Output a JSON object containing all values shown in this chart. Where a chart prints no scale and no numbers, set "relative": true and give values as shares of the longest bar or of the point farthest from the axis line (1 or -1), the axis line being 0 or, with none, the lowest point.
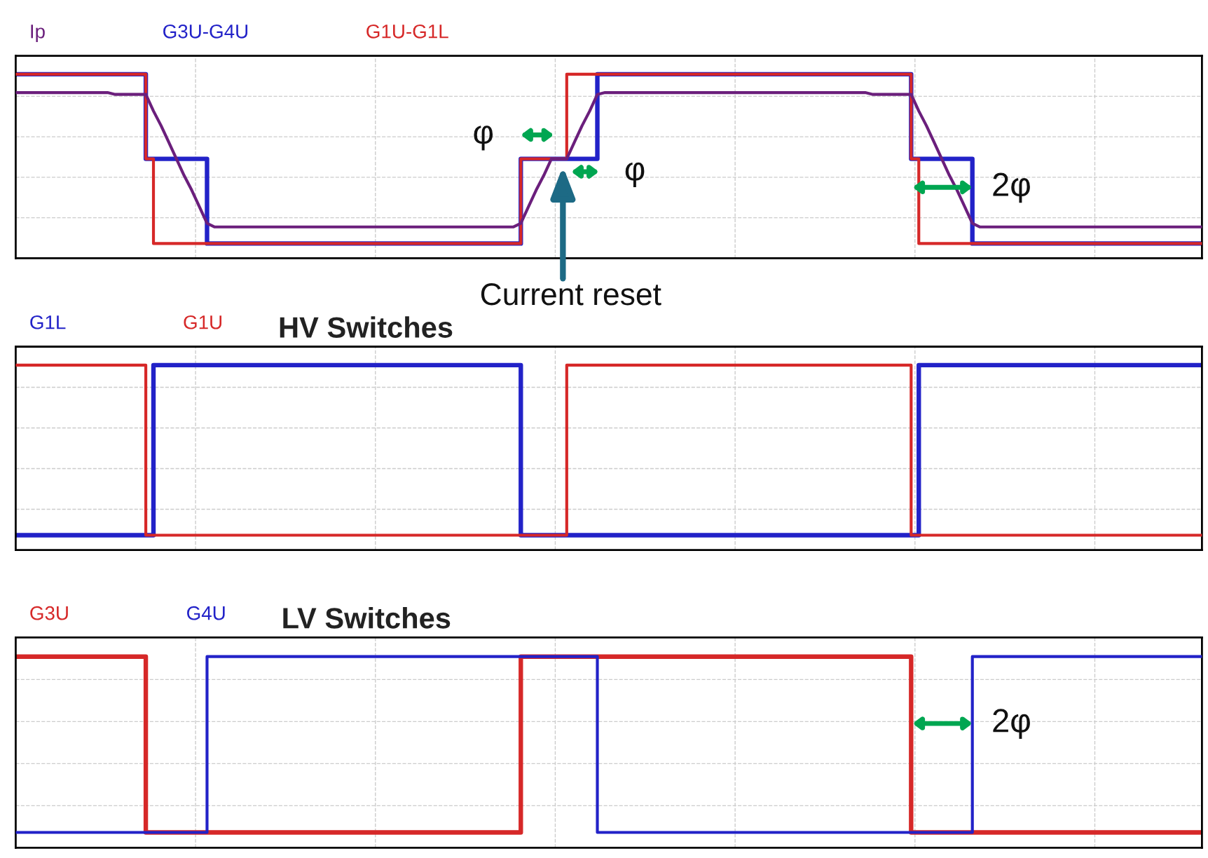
{
  "chart_data": [
    {
      "type": "step",
      "relative": true,
      "grid": true,
      "legend": "top left",
      "tick_labels": false,
      "categories": [
        null,
        null,
        null,
        null,
        null,
        null,
        null,
        null,
        null,
        null,
        null,
        null,
        null,
        null,
        null,
        null,
        null,
        null,
        null,
        null,
        null,
        null,
        null,
        null,
        null,
        null,
        null,
        null,
        null,
        null,
        null,
        null,
        null,
        null,
        null,
        null,
        null,
        null,
        null,
        null,
        null,
        null,
        null,
        null,
        null,
        null,
        null,
        null,
        null,
        null,
        null,
        null,
        null,
        null,
        null,
        null,
        null,
        null,
        null,
        null,
        null,
        null,
        null,
        null,
        null,
        null,
        null,
        null,
        null,
        null,
        null,
        null,
        null,
        null,
        null,
        null,
        null,
        null,
        null,
        null,
        null,
        null,
        null,
        null,
        null,
        null,
        null,
        null,
        null,
        null,
        null,
        null,
        null,
        null,
        null,
        null,
        null,
        null,
        null,
        null,
        null,
        null,
        null,
        null,
        null,
        null,
        null,
        null,
        null,
        null,
        null,
        null,
        null,
        null,
        null,
        null,
        null,
        null,
        null,
        null,
        null,
        null,
        null,
        null,
        null,
        null,
        null,
        null,
        null,
        null,
        null,
        null,
        null,
        null,
        null,
        null,
        null,
        null,
        null,
        null,
        null,
        null,
        null,
        null,
        null,
        null,
        null,
        null,
        null,
        null,
        null,
        null,
        null,
        null,
        null,
        null
      ],
      "series": [
        {
          "name": "Ip",
          "type": "line",
          "color": "#6b1f7c",
          "values": [
            0.9,
            0.9,
            0.9,
            0.9,
            0.9,
            0.9,
            0.9,
            0.9,
            0.9,
            0.9,
            0.9,
            0.9,
            0.9,
            0.89,
            0.89,
            0.89,
            0.89,
            0.89,
            0.8,
            0.72,
            0.63,
            0.54,
            0.45,
            0.37,
            0.28,
            0.19,
            0.17,
            0.17,
            0.17,
            0.17,
            0.17,
            0.17,
            0.17,
            0.17,
            0.17,
            0.17,
            0.17,
            0.17,
            0.17,
            0.17,
            0.17,
            0.17,
            0.17,
            0.17,
            0.17,
            0.17,
            0.17,
            0.17,
            0.17,
            0.17,
            0.17,
            0.17,
            0.17,
            0.17,
            0.17,
            0.17,
            0.17,
            0.17,
            0.17,
            0.17,
            0.17,
            0.17,
            0.17,
            0.17,
            0.17,
            0.17,
            0.19,
            0.28,
            0.37,
            0.45,
            0.54,
            0.54,
            0.54,
            0.63,
            0.72,
            0.8,
            0.89,
            0.9,
            0.9,
            0.9,
            0.9,
            0.9,
            0.9,
            0.9,
            0.9,
            0.9,
            0.9,
            0.9,
            0.9,
            0.9,
            0.9,
            0.9,
            0.9,
            0.9,
            0.9,
            0.9,
            0.9,
            0.9,
            0.9,
            0.9,
            0.9,
            0.9,
            0.9,
            0.9,
            0.9,
            0.9,
            0.9,
            0.9,
            0.9,
            0.9,
            0.9,
            0.9,
            0.89,
            0.89,
            0.89,
            0.89,
            0.89,
            0.89,
            0.8,
            0.72,
            0.63,
            0.54,
            0.45,
            0.37,
            0.28,
            0.19,
            0.17,
            0.17,
            0.17,
            0.17,
            0.17,
            0.17,
            0.17,
            0.17,
            0.17,
            0.17,
            0.17,
            0.17,
            0.17,
            0.17,
            0.17,
            0.17,
            0.17,
            0.17,
            0.17,
            0.17,
            0.17,
            0.17,
            0.17,
            0.17,
            0.17,
            0.17,
            0.17,
            0.17,
            0.17,
            0.17
          ]
        },
        {
          "name": "G3U-G4U",
          "color": "#2222c8",
          "values": [
            1,
            1,
            1,
            1,
            1,
            1,
            1,
            1,
            1,
            1,
            1,
            1,
            1,
            1,
            1,
            1,
            1,
            0.54,
            0.54,
            0.54,
            0.54,
            0.54,
            0.54,
            0.54,
            0.54,
            0.08,
            0.08,
            0.08,
            0.08,
            0.08,
            0.08,
            0.08,
            0.08,
            0.08,
            0.08,
            0.08,
            0.08,
            0.08,
            0.08,
            0.08,
            0.08,
            0.08,
            0.08,
            0.08,
            0.08,
            0.08,
            0.08,
            0.08,
            0.08,
            0.08,
            0.08,
            0.08,
            0.08,
            0.08,
            0.08,
            0.08,
            0.08,
            0.08,
            0.08,
            0.08,
            0.08,
            0.08,
            0.08,
            0.08,
            0.08,
            0.08,
            0.54,
            0.54,
            0.54,
            0.54,
            0.54,
            0.54,
            0.54,
            0.54,
            0.54,
            0.54,
            1,
            1,
            1,
            1,
            1,
            1,
            1,
            1,
            1,
            1,
            1,
            1,
            1,
            1,
            1,
            1,
            1,
            1,
            1,
            1,
            1,
            1,
            1,
            1,
            1,
            1,
            1,
            1,
            1,
            1,
            1,
            1,
            1,
            1,
            1,
            1,
            1,
            1,
            1,
            1,
            1,
            0.54,
            0.54,
            0.54,
            0.54,
            0.54,
            0.54,
            0.54,
            0.54,
            0.08,
            0.08,
            0.08,
            0.08,
            0.08,
            0.08,
            0.08,
            0.08,
            0.08,
            0.08,
            0.08,
            0.08,
            0.08,
            0.08,
            0.08,
            0.08,
            0.08,
            0.08,
            0.08,
            0.08,
            0.08,
            0.08,
            0.08,
            0.08,
            0.08,
            0.08,
            0.08,
            0.08,
            0.08,
            0.08,
            0.08
          ]
        },
        {
          "name": "G1U-G1L",
          "color": "#d62828",
          "values": [
            1,
            1,
            1,
            1,
            1,
            1,
            1,
            1,
            1,
            1,
            1,
            1,
            1,
            1,
            1,
            1,
            1,
            0.54,
            0.08,
            0.08,
            0.08,
            0.08,
            0.08,
            0.08,
            0.08,
            0.08,
            0.08,
            0.08,
            0.08,
            0.08,
            0.08,
            0.08,
            0.08,
            0.08,
            0.08,
            0.08,
            0.08,
            0.08,
            0.08,
            0.08,
            0.08,
            0.08,
            0.08,
            0.08,
            0.08,
            0.08,
            0.08,
            0.08,
            0.08,
            0.08,
            0.08,
            0.08,
            0.08,
            0.08,
            0.08,
            0.08,
            0.08,
            0.08,
            0.08,
            0.08,
            0.08,
            0.08,
            0.08,
            0.08,
            0.08,
            0.08,
            0.54,
            0.54,
            0.54,
            0.54,
            0.54,
            0.54,
            1,
            1,
            1,
            1,
            1,
            1,
            1,
            1,
            1,
            1,
            1,
            1,
            1,
            1,
            1,
            1,
            1,
            1,
            1,
            1,
            1,
            1,
            1,
            1,
            1,
            1,
            1,
            1,
            1,
            1,
            1,
            1,
            1,
            1,
            1,
            1,
            1,
            1,
            1,
            1,
            1,
            1,
            1,
            1,
            1,
            0.54,
            0.08,
            0.08,
            0.08,
            0.08,
            0.08,
            0.08,
            0.08,
            0.08,
            0.08,
            0.08,
            0.08,
            0.08,
            0.08,
            0.08,
            0.08,
            0.08,
            0.08,
            0.08,
            0.08,
            0.08,
            0.08,
            0.08,
            0.08,
            0.08,
            0.08,
            0.08,
            0.08,
            0.08,
            0.08,
            0.08,
            0.08,
            0.08,
            0.08,
            0.08,
            0.08,
            0.08,
            0.08,
            0.08
          ]
        }
      ],
      "annotations": [
        "φ",
        "φ",
        "2φ",
        "Current reset"
      ]
    },
    {
      "type": "step",
      "relative": true,
      "grid": true,
      "legend": "top left",
      "tick_labels": false,
      "title": "HV Switches",
      "categories": [
        null,
        null,
        null,
        null,
        null,
        null,
        null,
        null,
        null,
        null,
        null,
        null,
        null,
        null,
        null,
        null,
        null,
        null,
        null,
        null,
        null,
        null,
        null,
        null,
        null,
        null,
        null,
        null,
        null,
        null,
        null,
        null,
        null,
        null,
        null,
        null,
        null,
        null,
        null,
        null,
        null,
        null,
        null,
        null,
        null,
        null,
        null,
        null,
        null,
        null,
        null,
        null,
        null,
        null,
        null,
        null,
        null,
        null,
        null,
        null,
        null,
        null,
        null,
        null,
        null,
        null,
        null,
        null,
        null,
        null,
        null,
        null,
        null,
        null,
        null,
        null,
        null,
        null,
        null,
        null,
        null,
        null,
        null,
        null,
        null,
        null,
        null,
        null,
        null,
        null,
        null,
        null,
        null,
        null,
        null,
        null,
        null,
        null,
        null,
        null,
        null,
        null,
        null,
        null,
        null,
        null,
        null,
        null,
        null,
        null,
        null,
        null,
        null,
        null,
        null,
        null,
        null,
        null,
        null,
        null,
        null,
        null,
        null,
        null,
        null,
        null,
        null,
        null,
        null,
        null,
        null,
        null,
        null,
        null,
        null,
        null,
        null,
        null,
        null,
        null,
        null,
        null,
        null,
        null,
        null,
        null,
        null,
        null,
        null,
        null,
        null,
        null,
        null,
        null,
        null,
        null
      ],
      "series": [
        {
          "name": "G1L",
          "color": "#2222c8",
          "values": [
            0.08,
            0.08,
            0.08,
            0.08,
            0.08,
            0.08,
            0.08,
            0.08,
            0.08,
            0.08,
            0.08,
            0.08,
            0.08,
            0.08,
            0.08,
            0.08,
            0.08,
            0.08,
            1,
            1,
            1,
            1,
            1,
            1,
            1,
            1,
            1,
            1,
            1,
            1,
            1,
            1,
            1,
            1,
            1,
            1,
            1,
            1,
            1,
            1,
            1,
            1,
            1,
            1,
            1,
            1,
            1,
            1,
            1,
            1,
            1,
            1,
            1,
            1,
            1,
            1,
            1,
            1,
            1,
            1,
            1,
            1,
            1,
            1,
            1,
            1,
            0.08,
            0.08,
            0.08,
            0.08,
            0.08,
            0.08,
            0.08,
            0.08,
            0.08,
            0.08,
            0.08,
            0.08,
            0.08,
            0.08,
            0.08,
            0.08,
            0.08,
            0.08,
            0.08,
            0.08,
            0.08,
            0.08,
            0.08,
            0.08,
            0.08,
            0.08,
            0.08,
            0.08,
            0.08,
            0.08,
            0.08,
            0.08,
            0.08,
            0.08,
            0.08,
            0.08,
            0.08,
            0.08,
            0.08,
            0.08,
            0.08,
            0.08,
            0.08,
            0.08,
            0.08,
            0.08,
            0.08,
            0.08,
            0.08,
            0.08,
            0.08,
            0.08,
            1,
            1,
            1,
            1,
            1,
            1,
            1,
            1,
            1,
            1,
            1,
            1,
            1,
            1,
            1,
            1,
            1,
            1,
            1,
            1,
            1,
            1,
            1,
            1,
            1,
            1,
            1,
            1,
            1,
            1,
            1,
            1,
            1,
            1,
            1,
            1,
            1,
            1
          ]
        },
        {
          "name": "G1U",
          "color": "#d62828",
          "values": [
            1,
            1,
            1,
            1,
            1,
            1,
            1,
            1,
            1,
            1,
            1,
            1,
            1,
            1,
            1,
            1,
            1,
            0.08,
            0.08,
            0.08,
            0.08,
            0.08,
            0.08,
            0.08,
            0.08,
            0.08,
            0.08,
            0.08,
            0.08,
            0.08,
            0.08,
            0.08,
            0.08,
            0.08,
            0.08,
            0.08,
            0.08,
            0.08,
            0.08,
            0.08,
            0.08,
            0.08,
            0.08,
            0.08,
            0.08,
            0.08,
            0.08,
            0.08,
            0.08,
            0.08,
            0.08,
            0.08,
            0.08,
            0.08,
            0.08,
            0.08,
            0.08,
            0.08,
            0.08,
            0.08,
            0.08,
            0.08,
            0.08,
            0.08,
            0.08,
            0.08,
            0.08,
            0.08,
            0.08,
            0.08,
            0.08,
            0.08,
            1,
            1,
            1,
            1,
            1,
            1,
            1,
            1,
            1,
            1,
            1,
            1,
            1,
            1,
            1,
            1,
            1,
            1,
            1,
            1,
            1,
            1,
            1,
            1,
            1,
            1,
            1,
            1,
            1,
            1,
            1,
            1,
            1,
            1,
            1,
            1,
            1,
            1,
            1,
            1,
            1,
            1,
            1,
            1,
            1,
            0.08,
            0.08,
            0.08,
            0.08,
            0.08,
            0.08,
            0.08,
            0.08,
            0.08,
            0.08,
            0.08,
            0.08,
            0.08,
            0.08,
            0.08,
            0.08,
            0.08,
            0.08,
            0.08,
            0.08,
            0.08,
            0.08,
            0.08,
            0.08,
            0.08,
            0.08,
            0.08,
            0.08,
            0.08,
            0.08,
            0.08,
            0.08,
            0.08,
            0.08,
            0.08,
            0.08,
            0.08,
            0.08,
            0.08
          ]
        }
      ]
    },
    {
      "type": "step",
      "relative": true,
      "grid": true,
      "legend": "top left",
      "tick_labels": false,
      "title": "LV Switches",
      "categories": [
        null,
        null,
        null,
        null,
        null,
        null,
        null,
        null,
        null,
        null,
        null,
        null,
        null,
        null,
        null,
        null,
        null,
        null,
        null,
        null,
        null,
        null,
        null,
        null,
        null,
        null,
        null,
        null,
        null,
        null,
        null,
        null,
        null,
        null,
        null,
        null,
        null,
        null,
        null,
        null,
        null,
        null,
        null,
        null,
        null,
        null,
        null,
        null,
        null,
        null,
        null,
        null,
        null,
        null,
        null,
        null,
        null,
        null,
        null,
        null,
        null,
        null,
        null,
        null,
        null,
        null,
        null,
        null,
        null,
        null,
        null,
        null,
        null,
        null,
        null,
        null,
        null,
        null,
        null,
        null,
        null,
        null,
        null,
        null,
        null,
        null,
        null,
        null,
        null,
        null,
        null,
        null,
        null,
        null,
        null,
        null,
        null,
        null,
        null,
        null,
        null,
        null,
        null,
        null,
        null,
        null,
        null,
        null,
        null,
        null,
        null,
        null,
        null,
        null,
        null,
        null,
        null,
        null,
        null,
        null,
        null,
        null,
        null,
        null,
        null,
        null,
        null,
        null,
        null,
        null,
        null,
        null,
        null,
        null,
        null,
        null,
        null,
        null,
        null,
        null,
        null,
        null,
        null,
        null,
        null,
        null,
        null,
        null,
        null,
        null,
        null,
        null,
        null,
        null,
        null,
        null
      ],
      "series": [
        {
          "name": "G3U",
          "color": "#d62828",
          "values": [
            1,
            1,
            1,
            1,
            1,
            1,
            1,
            1,
            1,
            1,
            1,
            1,
            1,
            1,
            1,
            1,
            1,
            0.08,
            0.08,
            0.08,
            0.08,
            0.08,
            0.08,
            0.08,
            0.08,
            0.08,
            0.08,
            0.08,
            0.08,
            0.08,
            0.08,
            0.08,
            0.08,
            0.08,
            0.08,
            0.08,
            0.08,
            0.08,
            0.08,
            0.08,
            0.08,
            0.08,
            0.08,
            0.08,
            0.08,
            0.08,
            0.08,
            0.08,
            0.08,
            0.08,
            0.08,
            0.08,
            0.08,
            0.08,
            0.08,
            0.08,
            0.08,
            0.08,
            0.08,
            0.08,
            0.08,
            0.08,
            0.08,
            0.08,
            0.08,
            0.08,
            1,
            1,
            1,
            1,
            1,
            1,
            1,
            1,
            1,
            1,
            1,
            1,
            1,
            1,
            1,
            1,
            1,
            1,
            1,
            1,
            1,
            1,
            1,
            1,
            1,
            1,
            1,
            1,
            1,
            1,
            1,
            1,
            1,
            1,
            1,
            1,
            1,
            1,
            1,
            1,
            1,
            1,
            1,
            1,
            1,
            1,
            1,
            1,
            1,
            1,
            1,
            0.08,
            0.08,
            0.08,
            0.08,
            0.08,
            0.08,
            0.08,
            0.08,
            0.08,
            0.08,
            0.08,
            0.08,
            0.08,
            0.08,
            0.08,
            0.08,
            0.08,
            0.08,
            0.08,
            0.08,
            0.08,
            0.08,
            0.08,
            0.08,
            0.08,
            0.08,
            0.08,
            0.08,
            0.08,
            0.08,
            0.08,
            0.08,
            0.08,
            0.08,
            0.08,
            0.08,
            0.08,
            0.08,
            0.08
          ]
        },
        {
          "name": "G4U",
          "color": "#2222c8",
          "values": [
            0.08,
            0.08,
            0.08,
            0.08,
            0.08,
            0.08,
            0.08,
            0.08,
            0.08,
            0.08,
            0.08,
            0.08,
            0.08,
            0.08,
            0.08,
            0.08,
            0.08,
            0.08,
            0.08,
            0.08,
            0.08,
            0.08,
            0.08,
            0.08,
            0.08,
            1,
            1,
            1,
            1,
            1,
            1,
            1,
            1,
            1,
            1,
            1,
            1,
            1,
            1,
            1,
            1,
            1,
            1,
            1,
            1,
            1,
            1,
            1,
            1,
            1,
            1,
            1,
            1,
            1,
            1,
            1,
            1,
            1,
            1,
            1,
            1,
            1,
            1,
            1,
            1,
            1,
            1,
            1,
            1,
            1,
            1,
            1,
            1,
            1,
            1,
            1,
            0.08,
            0.08,
            0.08,
            0.08,
            0.08,
            0.08,
            0.08,
            0.08,
            0.08,
            0.08,
            0.08,
            0.08,
            0.08,
            0.08,
            0.08,
            0.08,
            0.08,
            0.08,
            0.08,
            0.08,
            0.08,
            0.08,
            0.08,
            0.08,
            0.08,
            0.08,
            0.08,
            0.08,
            0.08,
            0.08,
            0.08,
            0.08,
            0.08,
            0.08,
            0.08,
            0.08,
            0.08,
            0.08,
            0.08,
            0.08,
            0.08,
            0.08,
            0.08,
            0.08,
            0.08,
            0.08,
            0.08,
            0.08,
            0.08,
            1,
            1,
            1,
            1,
            1,
            1,
            1,
            1,
            1,
            1,
            1,
            1,
            1,
            1,
            1,
            1,
            1,
            1,
            1,
            1,
            1,
            1,
            1,
            1,
            1,
            1,
            1,
            1,
            1,
            1,
            1
          ]
        }
      ],
      "annotations": [
        "2φ"
      ]
    }
  ]
}
